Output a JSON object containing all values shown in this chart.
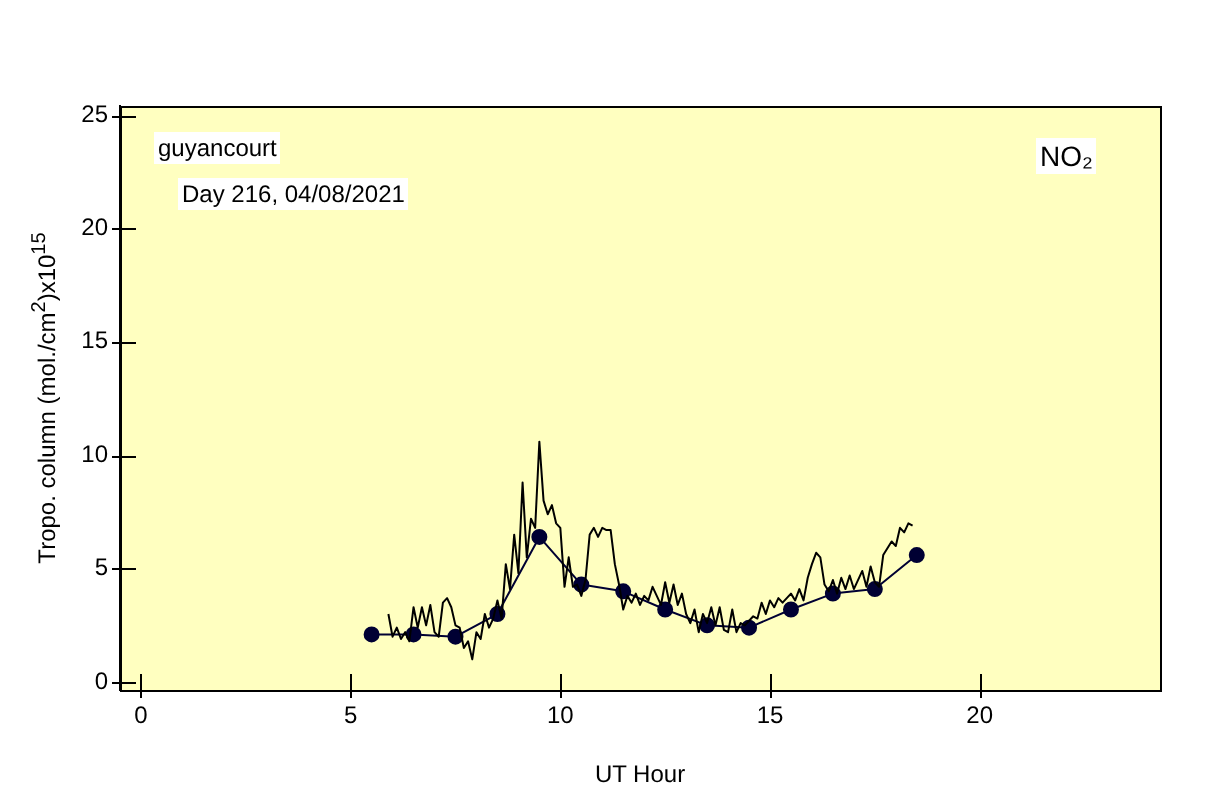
{
  "chart_data": {
    "type": "line",
    "xlabel": "UT Hour",
    "ylabel": "Tropo. column (mol./cm$^{2}$)x10$^{15}$",
    "annotations": [
      "guyancourt",
      "Day 216, 04/08/2021",
      "NO₂"
    ],
    "xlim": [
      -0.5,
      24.3
    ],
    "xticks": [
      0,
      5,
      10,
      15,
      20
    ],
    "ylim": [
      -0.35,
      25.4
    ],
    "yticks": [
      0,
      5,
      10,
      15,
      20,
      25
    ],
    "legend": false,
    "series": [
      {
        "color": "#000000",
        "marker": "none",
        "x": [
          5.9,
          6.0,
          6.1,
          6.2,
          6.3,
          6.4,
          6.5,
          6.6,
          6.7,
          6.8,
          6.9,
          7.0,
          7.1,
          7.2,
          7.3,
          7.4,
          7.5,
          7.6,
          7.7,
          7.8,
          7.9,
          8.0,
          8.1,
          8.2,
          8.3,
          8.4,
          8.5,
          8.6,
          8.7,
          8.8,
          8.9,
          9.0,
          9.1,
          9.2,
          9.3,
          9.4,
          9.5,
          9.6,
          9.7,
          9.8,
          9.9,
          10.0,
          10.1,
          10.2,
          10.3,
          10.4,
          10.5,
          10.6,
          10.7,
          10.8,
          10.9,
          11.0,
          11.1,
          11.2,
          11.3,
          11.4,
          11.5,
          11.6,
          11.7,
          11.8,
          11.9,
          12.0,
          12.1,
          12.2,
          12.3,
          12.4,
          12.5,
          12.6,
          12.7,
          12.8,
          12.9,
          13.0,
          13.1,
          13.2,
          13.3,
          13.4,
          13.5,
          13.6,
          13.7,
          13.8,
          13.9,
          14.0,
          14.1,
          14.2,
          14.3,
          14.4,
          14.6,
          14.7,
          14.8,
          14.9,
          15.0,
          15.1,
          15.2,
          15.3,
          15.5,
          15.6,
          15.7,
          15.8,
          15.9,
          16.0,
          16.1,
          16.2,
          16.3,
          16.4,
          16.5,
          16.6,
          16.7,
          16.8,
          16.9,
          17.0,
          17.2,
          17.3,
          17.4,
          17.5,
          17.6,
          17.7,
          17.8,
          17.9,
          18.0,
          18.1,
          18.2,
          18.3,
          18.4
        ],
        "values": [
          3.0,
          2.0,
          2.4,
          1.9,
          2.2,
          1.8,
          3.3,
          2.4,
          3.3,
          2.5,
          3.4,
          2.2,
          2.0,
          3.5,
          3.7,
          3.3,
          2.5,
          2.4,
          1.5,
          1.8,
          1.0,
          2.2,
          1.9,
          3.0,
          2.4,
          2.8,
          3.6,
          2.8,
          5.2,
          4.1,
          6.5,
          4.8,
          8.8,
          5.5,
          7.2,
          6.8,
          10.6,
          8.0,
          7.4,
          7.8,
          7.0,
          6.8,
          4.2,
          5.5,
          4.2,
          4.3,
          3.8,
          4.5,
          6.5,
          6.8,
          6.4,
          6.8,
          6.7,
          6.7,
          5.2,
          4.3,
          3.2,
          3.8,
          3.5,
          3.9,
          3.4,
          3.8,
          3.6,
          4.2,
          3.8,
          3.4,
          4.4,
          3.5,
          4.3,
          3.4,
          3.9,
          3.0,
          2.6,
          3.2,
          2.2,
          3.0,
          2.6,
          3.3,
          2.5,
          3.3,
          2.3,
          2.2,
          3.2,
          2.2,
          2.6,
          2.5,
          2.9,
          2.8,
          3.5,
          3.0,
          3.6,
          3.3,
          3.7,
          3.5,
          3.9,
          3.6,
          4.1,
          3.6,
          4.6,
          5.2,
          5.7,
          5.5,
          4.3,
          4.0,
          4.5,
          3.9,
          4.6,
          4.1,
          4.7,
          4.1,
          4.9,
          4.2,
          5.1,
          4.4,
          4.2,
          5.6,
          5.9,
          6.2,
          6.0,
          6.8,
          6.6,
          7.0,
          6.9
        ]
      },
      {
        "color": "#000033",
        "marker": "circle",
        "x": [
          5.5,
          6.5,
          7.5,
          8.5,
          9.5,
          10.5,
          11.5,
          12.5,
          13.5,
          14.5,
          15.5,
          16.5,
          17.5,
          18.5
        ],
        "values": [
          2.1,
          2.1,
          2.0,
          3.0,
          6.4,
          4.3,
          4.0,
          3.2,
          2.5,
          2.4,
          3.2,
          3.9,
          4.1,
          5.6
        ]
      }
    ]
  }
}
